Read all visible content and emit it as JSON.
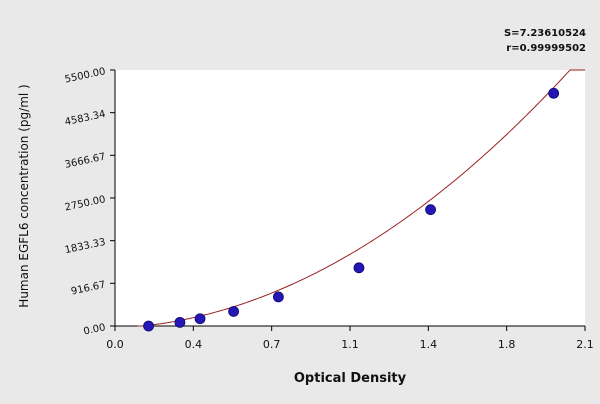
{
  "chart_data": {
    "type": "scatter",
    "title": "",
    "xlabel": "Optical Density",
    "ylabel": "Human EGFL6 concentration (pg/ml )",
    "xlim": [
      0.0,
      2.1
    ],
    "ylim": [
      0.0,
      5500.0
    ],
    "x_ticks": [
      "0.0",
      "0.4",
      "0.7",
      "1.1",
      "1.4",
      "1.8",
      "2.1"
    ],
    "x_tick_values": [
      0.0,
      0.35,
      0.7,
      1.05,
      1.4,
      1.75,
      2.1
    ],
    "y_ticks": [
      "0.00",
      "916.67",
      "1833.33",
      "2750.00",
      "3666.67",
      "4583.34",
      "5500.00"
    ],
    "y_tick_values": [
      0,
      916.67,
      1833.33,
      2750.0,
      3666.67,
      4583.34,
      5500.0
    ],
    "grid": false,
    "stats": [
      "S=7.23610524",
      "r=0.99999502"
    ],
    "points": [
      {
        "x": 0.15,
        "y": 0
      },
      {
        "x": 0.29,
        "y": 78
      },
      {
        "x": 0.38,
        "y": 156
      },
      {
        "x": 0.53,
        "y": 312
      },
      {
        "x": 0.73,
        "y": 625
      },
      {
        "x": 1.09,
        "y": 1250
      },
      {
        "x": 1.41,
        "y": 2500
      },
      {
        "x": 1.96,
        "y": 5000
      }
    ],
    "fit_curve": {
      "a": -46.1,
      "b": 210.3,
      "c": 1238.5
    },
    "colors": {
      "points": "#2417b5",
      "curve": "#9a2020",
      "axis": "#000000",
      "plot_bg": "#ffffff"
    }
  }
}
